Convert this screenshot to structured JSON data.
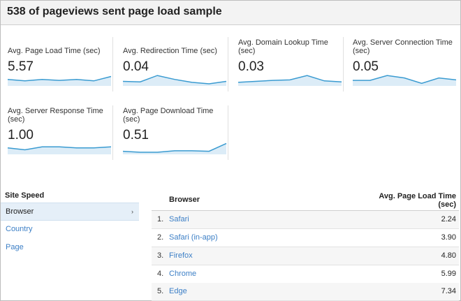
{
  "header": {
    "title": "538 of pageviews sent page load sample"
  },
  "metrics": [
    {
      "label": "Avg. Page Load Time (sec)",
      "value": "5.57",
      "trend": [
        0.45,
        0.3,
        0.45,
        0.35,
        0.45,
        0.3,
        0.75
      ]
    },
    {
      "label": "Avg. Redirection Time (sec)",
      "value": "0.04",
      "trend": [
        0.25,
        0.2,
        0.85,
        0.45,
        0.15,
        0.0,
        0.25
      ]
    },
    {
      "label": "Avg. Domain Lookup Time (sec)",
      "value": "0.03",
      "trend": [
        0.15,
        0.25,
        0.35,
        0.4,
        0.85,
        0.3,
        0.2
      ]
    },
    {
      "label": "Avg. Server Connection Time (sec)",
      "value": "0.05",
      "trend": [
        0.35,
        0.35,
        0.85,
        0.6,
        0.05,
        0.6,
        0.4
      ]
    },
    {
      "label": "Avg. Server Response Time (sec)",
      "value": "1.00",
      "trend": [
        0.45,
        0.25,
        0.55,
        0.55,
        0.45,
        0.45,
        0.55
      ]
    },
    {
      "label": "Avg. Page Download Time (sec)",
      "value": "0.51",
      "trend": [
        0.1,
        0.0,
        0.0,
        0.15,
        0.15,
        0.1,
        0.9
      ]
    }
  ],
  "left_panel": {
    "heading": "Site Speed",
    "items": [
      {
        "label": "Browser",
        "active": true,
        "arrow": "›"
      },
      {
        "label": "Country",
        "active": false
      },
      {
        "label": "Page",
        "active": false
      }
    ]
  },
  "table": {
    "columns": {
      "browser": "Browser",
      "metric": "Avg. Page Load Time (sec)"
    },
    "rows": [
      {
        "index": "1.",
        "name": "Safari",
        "value": "2.24"
      },
      {
        "index": "2.",
        "name": "Safari (in-app)",
        "value": "3.90"
      },
      {
        "index": "3.",
        "name": "Firefox",
        "value": "4.80"
      },
      {
        "index": "4.",
        "name": "Chrome",
        "value": "5.99"
      },
      {
        "index": "5.",
        "name": "Edge",
        "value": "7.34"
      }
    ]
  },
  "colors": {
    "accent": "#3a9bd1",
    "link": "#3c7fc6",
    "header_bg": "#f3f3f3"
  }
}
